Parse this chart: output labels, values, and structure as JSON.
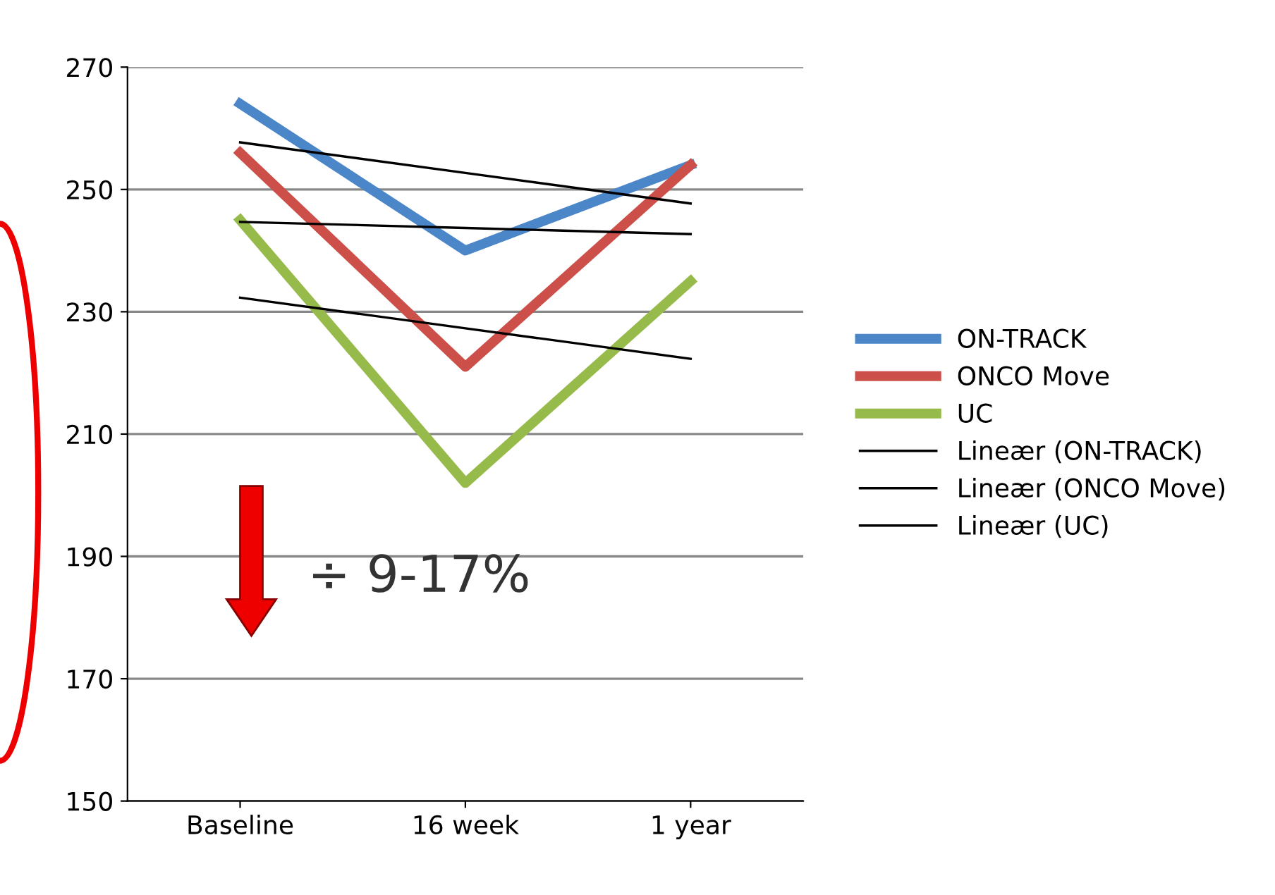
{
  "chart_data": {
    "type": "line",
    "categories": [
      "Baseline",
      "16 week",
      "1 year"
    ],
    "series": [
      {
        "name": "ON-TRACK",
        "color": "#4a86c8",
        "values": [
          264,
          240,
          254
        ]
      },
      {
        "name": "ONCO Move",
        "color": "#cc5049",
        "values": [
          256,
          221,
          254
        ]
      },
      {
        "name": "UC",
        "color": "#97bb4a",
        "values": [
          245,
          202,
          235
        ]
      },
      {
        "name": "Lineær (ON-TRACK)",
        "color": "#000000",
        "values": [
          257.7,
          252.7,
          247.7
        ]
      },
      {
        "name": "Lineær (ONCO Move)",
        "color": "#000000",
        "values": [
          244.7,
          243.7,
          242.7
        ]
      },
      {
        "name": "Lineær (UC)",
        "color": "#000000",
        "values": [
          232.3,
          227.3,
          222.3
        ]
      }
    ],
    "ylim": [
      150,
      270
    ],
    "yticks": [
      150,
      170,
      190,
      210,
      230,
      250,
      270
    ],
    "grid": "y",
    "legend": "right",
    "marker": "none",
    "line_style": "solid",
    "annotations": [
      "÷ 9-17%"
    ]
  }
}
